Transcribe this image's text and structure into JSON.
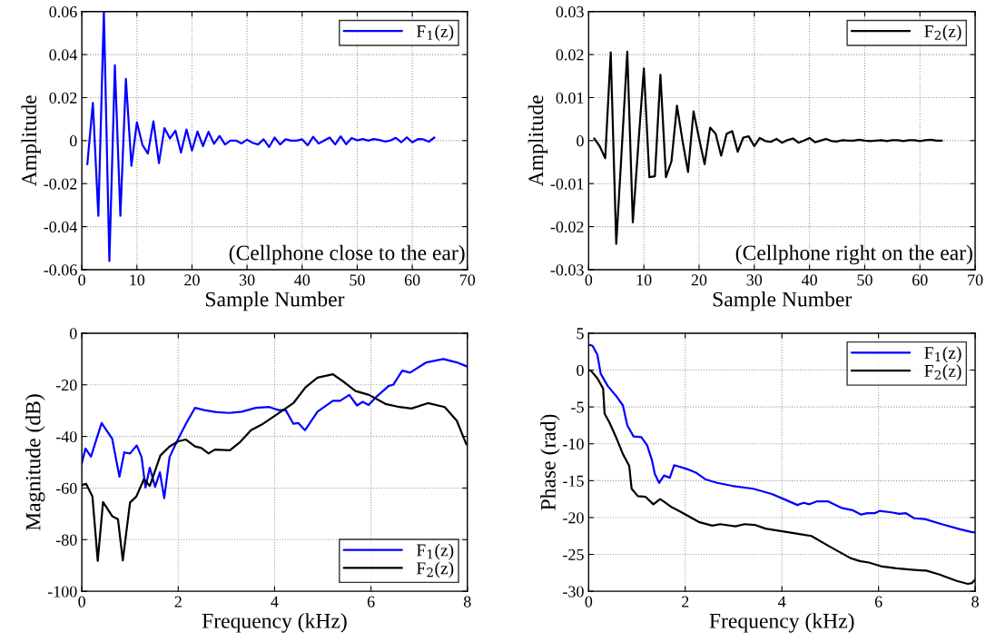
{
  "chart_data": [
    {
      "type": "line",
      "xlabel": "Sample Number",
      "ylabel": "Amplitude",
      "xlim": [
        0,
        70
      ],
      "ylim": [
        -0.06,
        0.06
      ],
      "xticks": [
        0,
        10,
        20,
        30,
        40,
        50,
        60,
        70
      ],
      "yticks": [
        -0.06,
        -0.04,
        -0.02,
        0,
        0.02,
        0.04,
        0.06
      ],
      "grid": true,
      "legend": "top right",
      "annotations": [
        "(Cellphone close to the ear)"
      ],
      "x": [
        1,
        2,
        3,
        4,
        5,
        6,
        7,
        8,
        9,
        10,
        11,
        12,
        13,
        14,
        15,
        16,
        17,
        18,
        19,
        20,
        21,
        22,
        23,
        24,
        25,
        26,
        27,
        28,
        29,
        30,
        31,
        32,
        33,
        34,
        35,
        36,
        37,
        38,
        39,
        40,
        41,
        42,
        43,
        44,
        45,
        46,
        47,
        48,
        49,
        50,
        51,
        52,
        53,
        54,
        55,
        56,
        57,
        58,
        59,
        60,
        61,
        62,
        63,
        64
      ],
      "series": [
        {
          "name": "F$_{1}$(z)",
          "color": "#0000ff",
          "values": [
            -0.011,
            0.0175,
            -0.035,
            0.06,
            -0.056,
            0.035,
            -0.035,
            0.0287,
            -0.0117,
            0.0085,
            -0.002,
            -0.006,
            0.009,
            -0.0105,
            0.0058,
            0.001,
            0.0046,
            -0.0056,
            0.0052,
            -0.0046,
            0.0042,
            -0.0025,
            0.0041,
            -0.0015,
            0.0022,
            -0.0018,
            0,
            0,
            -0.0013,
            0.0004,
            -0.001,
            -0.0018,
            0.0006,
            -0.003,
            0.0014,
            -0.0018,
            0.0006,
            0,
            0,
            0.0006,
            -0.0022,
            0.0018,
            -0.0014,
            0,
            0.0014,
            -0.0018,
            0.002,
            -0.0017,
            0.0012,
            0.0001,
            0.0007,
            0,
            0.0007,
            0.0003,
            -0.0004,
            0,
            0.0013,
            -0.0008,
            0.0015,
            -0.0008,
            0.0007,
            0.0006,
            -0.0005,
            0.0014
          ]
        }
      ]
    },
    {
      "type": "line",
      "xlabel": "Sample Number",
      "ylabel": "Amplitude",
      "xlim": [
        0,
        70
      ],
      "ylim": [
        -0.03,
        0.03
      ],
      "xticks": [
        0,
        10,
        20,
        30,
        40,
        50,
        60,
        70
      ],
      "yticks": [
        -0.03,
        -0.02,
        -0.01,
        0,
        0.01,
        0.02,
        0.03
      ],
      "grid": true,
      "legend": "top right",
      "annotations": [
        "(Cellphone right on the ear)"
      ],
      "x": [
        1,
        2,
        3,
        4,
        5,
        6,
        7,
        8,
        9,
        10,
        11,
        12,
        13,
        14,
        15,
        16,
        17,
        18,
        19,
        20,
        21,
        22,
        23,
        24,
        25,
        26,
        27,
        28,
        29,
        30,
        31,
        32,
        33,
        34,
        35,
        36,
        37,
        38,
        39,
        40,
        41,
        42,
        43,
        44,
        45,
        46,
        47,
        48,
        49,
        50,
        51,
        52,
        53,
        54,
        55,
        56,
        57,
        58,
        59,
        60,
        61,
        62,
        63,
        64
      ],
      "series": [
        {
          "name": "F$_{2}$(z)",
          "color": "#000000",
          "values": [
            0.0005,
            -0.0013,
            -0.0041,
            0.0205,
            -0.024,
            -0.002,
            0.0207,
            -0.019,
            -0.001,
            0.0168,
            -0.0085,
            -0.0083,
            0.0153,
            -0.0085,
            -0.0048,
            0.0081,
            0,
            -0.0073,
            0.0068,
            0.0005,
            -0.0055,
            0.003,
            0.0016,
            -0.0035,
            0.0016,
            0.0022,
            -0.0026,
            0.0007,
            0.001,
            -0.0013,
            0.0006,
            -0.0001,
            -0.0003,
            0.0004,
            -0.0005,
            0.0001,
            0.0005,
            -0.0005,
            0,
            0.0006,
            -0.0004,
            0,
            0.0004,
            -0.0001,
            -0.0002,
            0.0001,
            0,
            0,
            0.0002,
            0,
            -0.0001,
            0,
            0.0001,
            -0.0001,
            0.0001,
            0.0001,
            -0.0001,
            0.0001,
            0.0001,
            -0.0001,
            0.0001,
            0.0002,
            0,
            0
          ]
        }
      ]
    },
    {
      "type": "line",
      "xlabel": "Frequency (kHz)",
      "ylabel": "Magnitude (dB)",
      "xlim": [
        0,
        8
      ],
      "ylim": [
        -100,
        0
      ],
      "xticks": [
        0,
        2,
        4,
        6,
        8
      ],
      "yticks": [
        -100,
        -80,
        -60,
        -40,
        -20,
        0
      ],
      "grid": true,
      "legend": "bottom right",
      "series": [
        {
          "name": "F$_{1}$(z)",
          "color": "#0000ff",
          "x": [
            0,
            0.075,
            0.19,
            0.41,
            0.63,
            0.78,
            0.88,
            1.0,
            1.14,
            1.24,
            1.32,
            1.41,
            1.52,
            1.62,
            1.71,
            1.82,
            2.0,
            2.16,
            2.35,
            2.54,
            2.79,
            3.07,
            3.32,
            3.61,
            3.89,
            4.08,
            4.23,
            4.39,
            4.49,
            4.63,
            4.89,
            5.21,
            5.36,
            5.55,
            5.71,
            5.83,
            5.95,
            6.12,
            6.37,
            6.46,
            6.65,
            6.81,
            7.15,
            7.5,
            7.78,
            8.0
          ],
          "values": [
            -50.4,
            -44.7,
            -47.8,
            -34.8,
            -40.9,
            -55.6,
            -46.2,
            -46.6,
            -43.5,
            -48,
            -59.8,
            -52.1,
            -59.5,
            -53.9,
            -63.9,
            -48,
            -40.9,
            -35.1,
            -28.9,
            -29.8,
            -30.6,
            -30.9,
            -30.4,
            -28.9,
            -28.6,
            -29.8,
            -29.8,
            -35.1,
            -34.8,
            -37.6,
            -30.4,
            -26.2,
            -26.2,
            -23.9,
            -28,
            -26.6,
            -27.8,
            -24.5,
            -20.4,
            -20,
            -14.5,
            -15.3,
            -11.3,
            -10,
            -11.3,
            -12.9
          ]
        },
        {
          "name": "F$_{2}$(z)",
          "color": "#000000",
          "x": [
            0,
            0.09,
            0.22,
            0.33,
            0.44,
            0.63,
            0.75,
            0.85,
            1.0,
            1.13,
            1.29,
            1.41,
            1.63,
            1.82,
            2.0,
            2.16,
            2.35,
            2.48,
            2.63,
            2.76,
            3.07,
            3.29,
            3.51,
            3.76,
            4.02,
            4.39,
            4.64,
            4.89,
            5.21,
            5.46,
            5.68,
            5.96,
            6.3,
            6.59,
            6.84,
            7.18,
            7.53,
            7.78,
            7.98
          ],
          "values": [
            -58.8,
            -58.4,
            -63.3,
            -88.2,
            -65.4,
            -70.9,
            -72.1,
            -88,
            -65.6,
            -63.3,
            -56.5,
            -59.2,
            -47.4,
            -43.9,
            -41.9,
            -41.2,
            -43.9,
            -44.5,
            -46.6,
            -45.1,
            -45.4,
            -42.1,
            -37.6,
            -35.1,
            -31.8,
            -27.1,
            -21,
            -17.2,
            -15.9,
            -19.2,
            -22.4,
            -23.9,
            -27.4,
            -28.6,
            -29.2,
            -27.1,
            -28.6,
            -33.9,
            -43.1
          ]
        }
      ]
    },
    {
      "type": "line",
      "xlabel": "Frequency (kHz)",
      "ylabel": "Phase (rad)",
      "xlim": [
        0,
        8
      ],
      "ylim": [
        -30,
        5
      ],
      "xticks": [
        0,
        2,
        4,
        6,
        8
      ],
      "yticks": [
        -30,
        -25,
        -20,
        -15,
        -10,
        -5,
        0,
        5
      ],
      "grid": true,
      "legend": "top right",
      "series": [
        {
          "name": "F$_{1}$(z)",
          "color": "#0000ff",
          "x": [
            0.02,
            0.08,
            0.18,
            0.25,
            0.4,
            0.58,
            0.71,
            0.8,
            0.93,
            1.09,
            1.21,
            1.31,
            1.37,
            1.46,
            1.56,
            1.68,
            1.77,
            2.03,
            2.22,
            2.41,
            2.66,
            2.97,
            3.41,
            3.79,
            4.04,
            4.32,
            4.45,
            4.57,
            4.73,
            4.95,
            5.24,
            5.46,
            5.64,
            5.77,
            5.93,
            6.02,
            6.27,
            6.43,
            6.56,
            6.74,
            6.96,
            7.31,
            7.69,
            7.94,
            8.0
          ],
          "values": [
            3.4,
            3.3,
            2.1,
            -0.5,
            -2.2,
            -3.6,
            -4.8,
            -7.5,
            -9,
            -9.1,
            -10.2,
            -12.2,
            -14.1,
            -15.3,
            -14.3,
            -14.6,
            -12.9,
            -13.4,
            -13.9,
            -14.8,
            -15.3,
            -15.7,
            -16.1,
            -16.8,
            -17.5,
            -18.3,
            -18,
            -18.2,
            -17.8,
            -17.8,
            -18.7,
            -19,
            -19.6,
            -19.4,
            -19.4,
            -19.1,
            -19.3,
            -19.5,
            -19.4,
            -20.1,
            -20.2,
            -20.9,
            -21.6,
            -22,
            -22
          ]
        },
        {
          "name": "F$_{2}$(z)",
          "color": "#000000",
          "x": [
            0,
            0.05,
            0.18,
            0.3,
            0.33,
            0.43,
            0.58,
            0.71,
            0.84,
            0.89,
            1.02,
            1.18,
            1.34,
            1.48,
            1.59,
            1.72,
            1.9,
            2.28,
            2.56,
            2.72,
            3.04,
            3.22,
            3.44,
            3.66,
            4.04,
            4.42,
            4.61,
            4.98,
            5.42,
            5.61,
            5.8,
            6.05,
            6.37,
            6.74,
            6.99,
            7.25,
            7.62,
            7.85,
            7.93,
            8.0
          ],
          "values": [
            0,
            -0.1,
            -1.1,
            -2.5,
            -5.9,
            -7.1,
            -9.3,
            -11.4,
            -13,
            -16.1,
            -17.1,
            -17.2,
            -18.2,
            -17.5,
            -18,
            -18.6,
            -19.2,
            -20.6,
            -21.1,
            -20.9,
            -21.2,
            -20.9,
            -21,
            -21.5,
            -21.9,
            -22.3,
            -22.5,
            -23.9,
            -25.5,
            -25.9,
            -26.1,
            -26.6,
            -26.9,
            -27.1,
            -27.2,
            -27.7,
            -28.6,
            -29,
            -28.9,
            -28.4
          ]
        }
      ]
    }
  ]
}
